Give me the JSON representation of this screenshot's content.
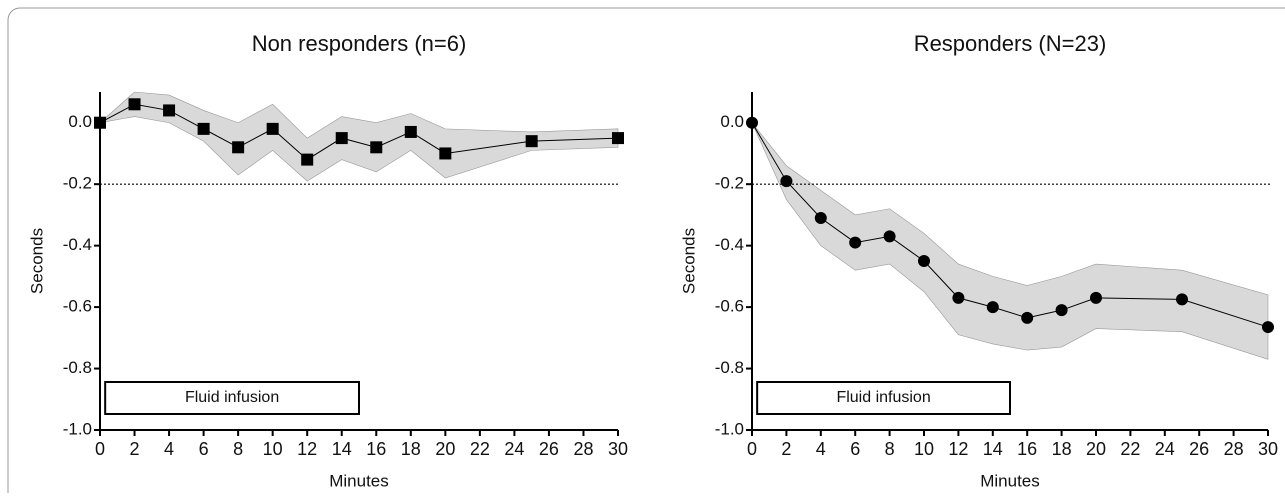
{
  "chart_data": [
    {
      "type": "line",
      "title": "Non responders (n=6)",
      "x_label": "Minutes",
      "y_label": "Seconds",
      "marker": "square",
      "x": [
        0,
        2,
        4,
        6,
        8,
        10,
        12,
        14,
        16,
        18,
        20,
        25,
        30
      ],
      "series": [
        {
          "color": "#000000",
          "values": [
            0,
            0.06,
            0.04,
            -0.02,
            -0.08,
            -0.02,
            -0.12,
            -0.05,
            -0.08,
            -0.03,
            -0.1,
            -0.06,
            -0.05
          ],
          "upper": [
            0,
            0.1,
            0.09,
            0.04,
            0.0,
            0.06,
            -0.05,
            0.02,
            0.0,
            0.03,
            -0.02,
            -0.03,
            -0.02
          ],
          "lower": [
            0,
            0.02,
            0.0,
            -0.06,
            -0.17,
            -0.09,
            -0.19,
            -0.12,
            -0.16,
            -0.09,
            -0.18,
            -0.09,
            -0.08
          ],
          "band_color": "#d9d9d9"
        }
      ],
      "reference_line": -0.2,
      "annotation": {
        "text": "Fluid infusion",
        "x_range": [
          0.3,
          15
        ]
      },
      "xlim": [
        0,
        30
      ],
      "xticks": [
        0,
        2,
        4,
        6,
        8,
        10,
        12,
        14,
        16,
        18,
        20,
        22,
        24,
        26,
        28,
        30
      ],
      "ylim": [
        -1,
        0.1
      ],
      "yticks": [
        {
          "value": 0,
          "label": "0.0"
        },
        -0.2,
        -0.4,
        -0.6,
        -0.8,
        {
          "value": -1,
          "label": "-1.0"
        }
      ]
    },
    {
      "type": "line",
      "title": "Responders  (N=23)",
      "x_label": "Minutes",
      "y_label": "Seconds",
      "marker": "circle",
      "x": [
        0,
        2,
        4,
        6,
        8,
        10,
        12,
        14,
        16,
        18,
        20,
        25,
        30
      ],
      "series": [
        {
          "color": "#000000",
          "values": [
            0,
            -0.19,
            -0.31,
            -0.39,
            -0.37,
            -0.45,
            -0.57,
            -0.6,
            -0.635,
            -0.61,
            -0.57,
            -0.575,
            -0.665
          ],
          "upper": [
            0,
            -0.14,
            -0.22,
            -0.3,
            -0.28,
            -0.36,
            -0.46,
            -0.5,
            -0.53,
            -0.5,
            -0.46,
            -0.48,
            -0.56
          ],
          "lower": [
            0,
            -0.25,
            -0.4,
            -0.48,
            -0.46,
            -0.55,
            -0.69,
            -0.72,
            -0.74,
            -0.73,
            -0.67,
            -0.68,
            -0.77
          ],
          "band_color": "#d9d9d9"
        }
      ],
      "reference_line": -0.2,
      "annotation": {
        "text": "Fluid infusion",
        "x_range": [
          0.3,
          15
        ]
      },
      "xlim": [
        0,
        30
      ],
      "xticks": [
        0,
        2,
        4,
        6,
        8,
        10,
        12,
        14,
        16,
        18,
        20,
        22,
        24,
        26,
        28,
        30
      ],
      "ylim": [
        -1,
        0.1
      ],
      "yticks": [
        {
          "value": 0,
          "label": "0.0"
        },
        -0.2,
        -0.4,
        -0.6,
        -0.8,
        {
          "value": -1,
          "label": "-1.0"
        }
      ]
    }
  ]
}
